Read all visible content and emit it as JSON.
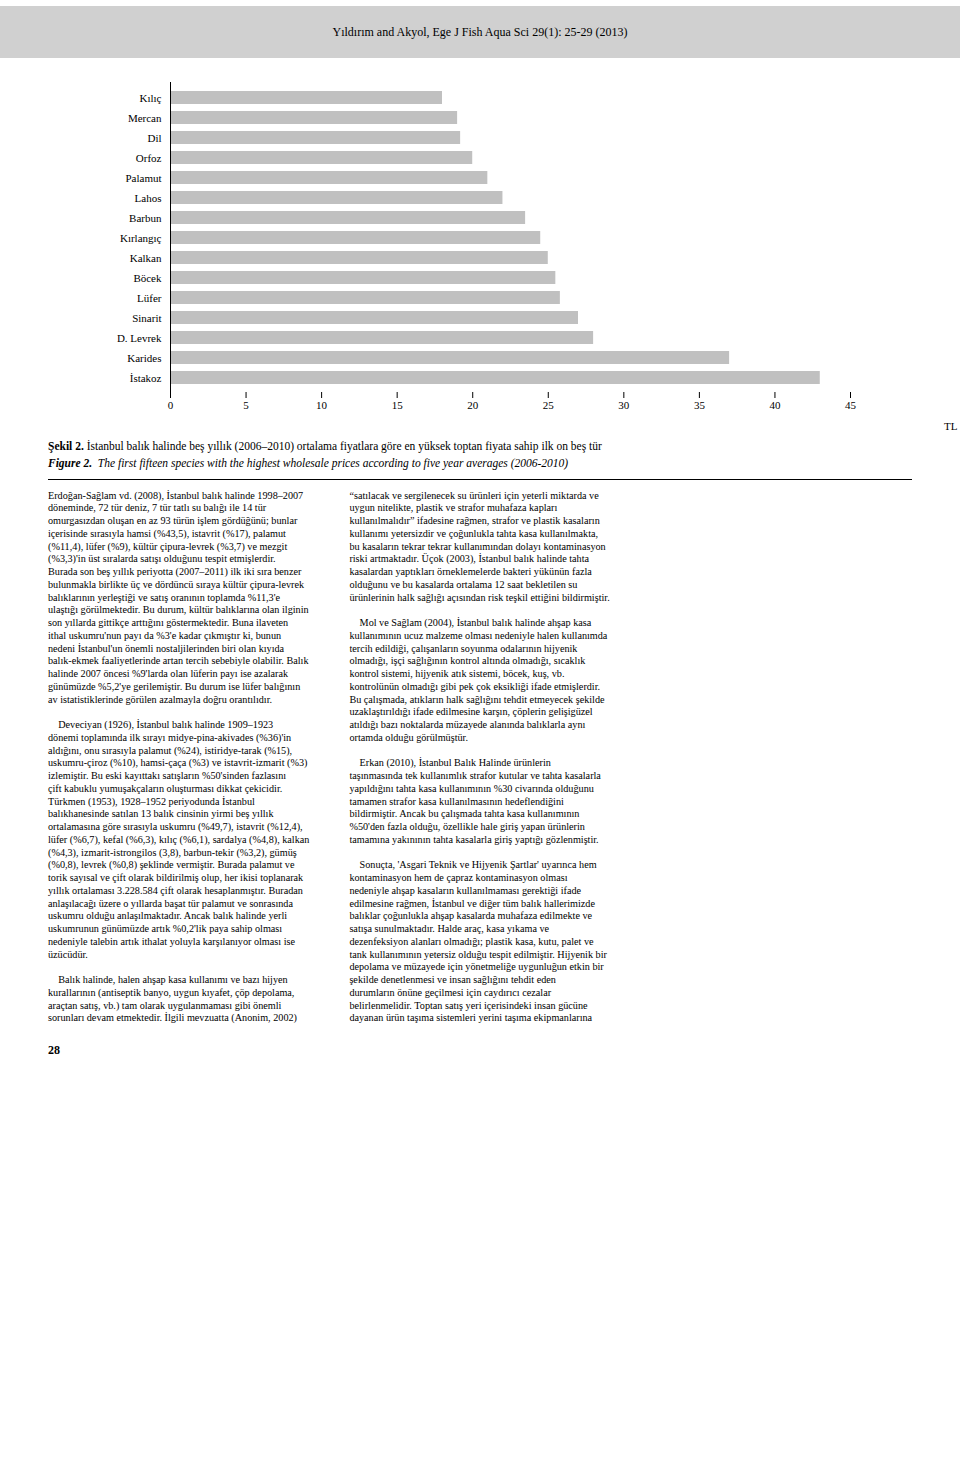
{
  "chart_data": {
    "type": "bar",
    "orientation": "horizontal",
    "title": "Yıldırım and Akyol, Ege J Fish Aqua Sci 29(1): 25-29 (2013)",
    "categories": [
      "Kılıç",
      "Mercan",
      "Dil",
      "Orfoz",
      "Palamut",
      "Lahos",
      "Barbun",
      "Kırlangıç",
      "Kalkan",
      "Böcek",
      "Lüfer",
      "Sinarit",
      "D. Levrek",
      "Karides",
      "İstakoz"
    ],
    "values": [
      18.0,
      19.0,
      19.2,
      20.0,
      21.0,
      22.0,
      23.5,
      24.5,
      25.0,
      25.5,
      25.8,
      27.0,
      28.0,
      37.0,
      43.0
    ],
    "color": "#C0C0C0",
    "xlim": [
      0,
      45
    ],
    "xticks": [
      0,
      5,
      10,
      15,
      20,
      25,
      30,
      35,
      40,
      45
    ],
    "xlabel": "TL",
    "grid": false,
    "annotations": [
      "Şekil 2.",
      " İstanbul balık halinde beş yıllık (2006–2010) ortalama fiyatlara göre en yüksek toptan fiyata sahip ilk on beş tür",
      "Figure 2.",
      "  The first fifteen species with the highest wholesale prices according to five year averages (2006-2010)",
      "Erdoğan-Sağlam vd. (2008), İstanbul balık halinde 1998–2007\ndöneminde, 72 tür deniz, 7 tür tatlı su balığı ile 14 tür\nomurgasızdan oluşan en az 93 türün işlem gördüğünü; bunlar\niçerisinde sırasıyla hamsi (%43,5), istavrit (%17), palamut\n(%11,4), lüfer (%9), kültür çipura-levrek (%3,7) ve mezgit\n(%3,3)'in üst sıralarda satışı olduğunu tespit etmişlerdir.\nBurada son beş yıllık periyotta (2007–2011) ilk iki sıra benzer\nbulunmakla birlikte üç ve dördüncü sıraya kültür çipura-levrek\nbalıklarının yerleştiği ve satış oranının toplamda %11,3'e\nulaştığı görülmektedir. Bu durum, kültür balıklarına olan ilginin\nson yıllarda gittikçe arttığını göstermektedir. Buna ilaveten\nithal uskumru'nun payı da %3'e kadar çıkmıştır ki, bunun\nnedeni İstanbul'un önemli nostaljilerinden biri olan kıyıda\nbalık-ekmek faaliyetlerinde artan tercih sebebiyle olabilir. Balık\nhalinde 2007 öncesi %9'larda olan lüferin payı ise azalarak\ngünümüzde %5,2'ye gerilemiştir. Bu durum ise lüfer balığının\nav istatistiklerinde görülen azalmayla doğru orantılıdır.\n\n    Deveciyan (1926), İstanbul balık halinde 1909–1923\ndönemi toplamında ilk sırayı midye-pina-akivades (%36)'in\naldığını, onu sırasıyla palamut (%24), istiridye-tarak (%15),\nuskumru-çiroz (%10), hamsi-çaça (%3) ve istavrit-izmarit (%3)\nizlemiştir. Bu eski kayıttakı satışların %50'sinden fazlasını\nçift kabuklu yumuşakçaların oluşturması dikkat çekicidir.\nTürkmen (1953), 1928–1952 periyodunda İstanbul\nbalıkhanesinde satılan 13 balık cinsinin yirmi beş yıllık\nortalamasına göre sırasıyla uskumru (%49,7), istavrit (%12,4),\nlüfer (%6,7), kefal (%6,3), kılıç (%6,1), sardalya (%4,8), kalkan\n(%4,3), izmarit-istrongilos (3,8), barbun-tekir (%3,2), gümüş\n(%0,8), levrek (%0,8) şeklinde vermiştir. Burada palamut ve\ntorik sayısal ve çift olarak bildirilmiş olup, her ikisi toplanarak\nyıllık ortalaması 3.228.584 çift olarak hesaplanmıştır. Buradan\nanlaşılacağı üzere o yıllarda başat tür palamut ve sonrasında\nuskumru olduğu anlaşılmaktadır. Ancak balık halinde yerli\nuskumrunun günümüzde artık %0,2'lik paya sahip olması\nnedeniyle talebin artık ithalat yoluyla karşılanıyor olması ise\nüzücüdür.\n\n    Balık halinde, halen ahşap kasa kullanımı ve bazı hijyen\nkurallarının (antiseptik banyo, uygun kıyafet, çöp depolama,\naraçtan satış, vb.) tam olarak uygulanmaması gibi önemli\nsorunları devam etmektedir. İlgili mevzuatta (Anonim, 2002)",
      "“satılacak ve sergilenecek su ürünleri için yeterli miktarda ve\nuygun nitelikte, plastik ve strafor muhafaza kapları\nkullanılmalıdır” ifadesine rağmen, strafor ve plastik kasaların\nkullanımı yetersizdir ve çoğunlukla tahta kasa kullanılmakta,\nbu kasaların tekrar tekrar kullanımından dolayı kontaminasyon\nriski artmaktadır. Üçok (2003), İstanbul balık halinde tahta\nkasalardan yaptıkları örneklemelerde bakteri yükünün fazla\nolduğunu ve bu kasalarda ortalama 12 saat bekletilen su\nürünlerinin halk sağlığı açısından risk teşkil ettiğini bildirmiştir.\n\n    Mol ve Sağlam (2004), İstanbul balık halinde ahşap kasa\nkullanımının ucuz malzeme olması nedeniyle halen kullanımda\ntercih edildiği, çalışanların soyunma odalarının hijyenik\nolmadığı, işçi sağlığının kontrol altında olmadığı, sıcaklık\nkontrol sistemi, hijyenik atık sistemi, böcek, kuş, vb.\nkontrolünün olmadığı gibi pek çok eksikliği ifade etmişlerdir.\nBu çalışmada, atıkların halk sağlığını tehdit etmeyecek şekilde\nuzaklaştırıldığı ifade edilmesine karşın, çöplerin gelişigüzel\natıldığı bazı noktalarda müzayede alanında balıklarla aynı\nortamda olduğu görülmüştür.\n\n    Erkan (2010), İstanbul Balık Halinde ürünlerin\ntaşınmasında tek kullanımlık strafor kutular ve tahta kasalarla\nyapıldığını tahta kasa kullanımının %30 civarında olduğunu\ntamamen strafor kasa kullanılmasının hedeflendiğini\nbildirmiştir. Ancak bu çalışmada tahta kasa kullanımının\n%50'den fazla olduğu, özellikle hale giriş yapan ürünlerin\ntamamına yakınının tahta kasalarla giriş yaptığı gözlenmiştir.\n\n    Sonuçta, 'Asgari Teknik ve Hijyenik Şartlar' uyarınca hem\nkontaminasyon hem de çapraz kontaminasyon olması\nnedeniyle ahşap kasaların kullanılmaması gerektiği ifade\nedilmesine rağmen, İstanbul ve diğer tüm balık hallerimizde\nbalıklar çoğunlukla ahşap kasalarda muhafaza edilmekte ve\nsatışa sunulmaktadır. Halde araç, kasa yıkama ve\ndezenfeksiyon alanları olmadığı; plastik kasa, kutu, palet ve\ntank kullanımının yetersiz olduğu tespit edilmiştir. Hijyenik bir\ndepolama ve müzayede için yönetmeliğe uygunluğun etkin bir\nşekilde denetlenmesi ve insan sağlığını tehdit eden\ndurumların önüne geçilmesi için caydırıcı cezalar\nbelirlenmelidir. Toptan satış yeri içerisindeki insan gücüne\ndayanan ürün taşıma sistemleri yerini taşıma ekipmanlarına",
      "28"
    ]
  }
}
